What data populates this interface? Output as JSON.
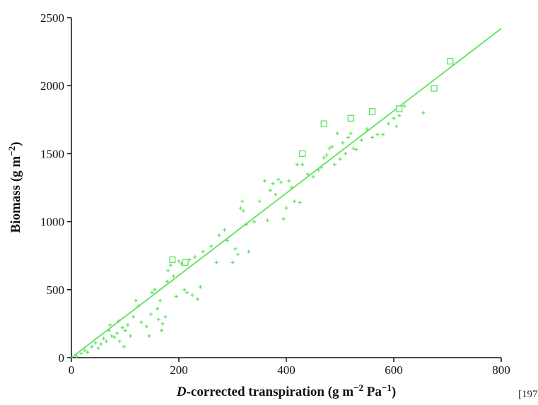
{
  "chart_data": {
    "type": "scatter",
    "xlabel": {
      "prefix": "D",
      "main": "-corrected transpiration (g m",
      "sup1": "−2",
      "mid": " Pa",
      "sup2": "−1",
      "suffix": ")"
    },
    "ylabel": {
      "main": "Biomass (g m",
      "sup": "−2",
      "suffix": ")"
    },
    "xlim": [
      0,
      800
    ],
    "ylim": [
      0,
      2500
    ],
    "xticks": [
      "0",
      "200",
      "400",
      "600",
      "800"
    ],
    "yticks": [
      "0",
      "500",
      "1000",
      "1500",
      "2000",
      "2500"
    ],
    "grid": false,
    "color": "#5ee35e",
    "series": [
      {
        "marker": "plus",
        "points": [
          [
            10,
            10
          ],
          [
            18,
            30
          ],
          [
            25,
            55
          ],
          [
            30,
            40
          ],
          [
            38,
            80
          ],
          [
            45,
            110
          ],
          [
            50,
            70
          ],
          [
            55,
            100
          ],
          [
            60,
            140
          ],
          [
            65,
            120
          ],
          [
            70,
            200
          ],
          [
            72,
            240
          ],
          [
            75,
            160
          ],
          [
            80,
            150
          ],
          [
            85,
            180
          ],
          [
            88,
            270
          ],
          [
            90,
            120
          ],
          [
            95,
            220
          ],
          [
            98,
            80
          ],
          [
            100,
            200
          ],
          [
            105,
            240
          ],
          [
            110,
            160
          ],
          [
            115,
            300
          ],
          [
            120,
            420
          ],
          [
            125,
            380
          ],
          [
            130,
            260
          ],
          [
            140,
            230
          ],
          [
            145,
            160
          ],
          [
            148,
            320
          ],
          [
            150,
            480
          ],
          [
            155,
            500
          ],
          [
            160,
            360
          ],
          [
            162,
            280
          ],
          [
            165,
            420
          ],
          [
            168,
            200
          ],
          [
            170,
            250
          ],
          [
            175,
            300
          ],
          [
            178,
            560
          ],
          [
            180,
            640
          ],
          [
            185,
            680
          ],
          [
            190,
            600
          ],
          [
            195,
            450
          ],
          [
            200,
            710
          ],
          [
            205,
            690
          ],
          [
            210,
            500
          ],
          [
            215,
            480
          ],
          [
            220,
            720
          ],
          [
            225,
            460
          ],
          [
            230,
            740
          ],
          [
            235,
            430
          ],
          [
            240,
            520
          ],
          [
            245,
            780
          ],
          [
            260,
            820
          ],
          [
            270,
            700
          ],
          [
            275,
            900
          ],
          [
            285,
            940
          ],
          [
            290,
            860
          ],
          [
            300,
            700
          ],
          [
            305,
            800
          ],
          [
            310,
            760
          ],
          [
            315,
            1100
          ],
          [
            318,
            1150
          ],
          [
            320,
            1080
          ],
          [
            325,
            980
          ],
          [
            330,
            780
          ],
          [
            340,
            1000
          ],
          [
            350,
            1150
          ],
          [
            360,
            1300
          ],
          [
            365,
            1010
          ],
          [
            370,
            1230
          ],
          [
            375,
            1280
          ],
          [
            380,
            1200
          ],
          [
            385,
            1310
          ],
          [
            390,
            1290
          ],
          [
            395,
            1020
          ],
          [
            400,
            1100
          ],
          [
            405,
            1300
          ],
          [
            410,
            1250
          ],
          [
            415,
            1150
          ],
          [
            420,
            1420
          ],
          [
            425,
            1140
          ],
          [
            430,
            1420
          ],
          [
            440,
            1350
          ],
          [
            450,
            1330
          ],
          [
            460,
            1380
          ],
          [
            465,
            1400
          ],
          [
            470,
            1470
          ],
          [
            475,
            1490
          ],
          [
            480,
            1540
          ],
          [
            485,
            1550
          ],
          [
            490,
            1420
          ],
          [
            495,
            1650
          ],
          [
            500,
            1460
          ],
          [
            505,
            1580
          ],
          [
            510,
            1500
          ],
          [
            515,
            1620
          ],
          [
            520,
            1650
          ],
          [
            525,
            1540
          ],
          [
            530,
            1530
          ],
          [
            540,
            1600
          ],
          [
            550,
            1680
          ],
          [
            560,
            1620
          ],
          [
            570,
            1640
          ],
          [
            580,
            1640
          ],
          [
            590,
            1720
          ],
          [
            600,
            1760
          ],
          [
            605,
            1700
          ],
          [
            610,
            1780
          ],
          [
            620,
            1850
          ],
          [
            655,
            1800
          ]
        ]
      },
      {
        "marker": "square",
        "points": [
          [
            188,
            720
          ],
          [
            212,
            700
          ],
          [
            430,
            1500
          ],
          [
            470,
            1720
          ],
          [
            520,
            1760
          ],
          [
            560,
            1810
          ],
          [
            610,
            1830
          ],
          [
            675,
            1980
          ],
          [
            705,
            2180
          ]
        ]
      }
    ],
    "fit_line": {
      "x": [
        0,
        800
      ],
      "y": [
        0,
        2420
      ]
    }
  },
  "corner_note": "[197"
}
